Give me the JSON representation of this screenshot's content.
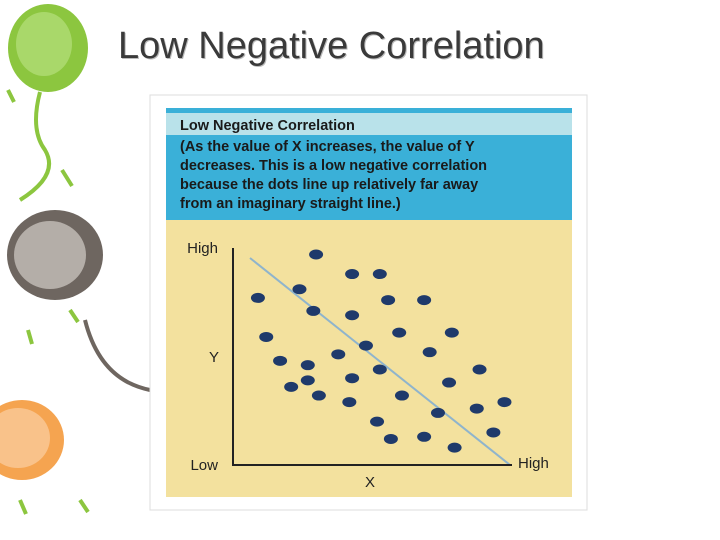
{
  "slide_title": "Low Negative Correlation",
  "chart_data": {
    "type": "scatter",
    "title": "Low Negative Correlation",
    "description": [
      "(As the value of X increases, the value of Y",
      "decreases. This is a low negative correlation",
      "because the dots line up relatively far away",
      "from an imaginary straight line.)"
    ],
    "x_label": "X",
    "y_label": "Y",
    "xlim": [
      0,
      10
    ],
    "ylim": [
      0,
      10
    ],
    "xticks": [
      {
        "value": 10,
        "label": "High"
      }
    ],
    "yticks": [
      {
        "value": 0,
        "label": "Low"
      },
      {
        "value": 10,
        "label": "High"
      }
    ],
    "color": "#1f3a6b",
    "x": [
      3.0,
      4.3,
      5.3,
      2.4,
      0.9,
      5.6,
      6.9,
      2.9,
      4.3,
      1.2,
      6.0,
      7.9,
      4.8,
      1.7,
      2.7,
      3.8,
      7.1,
      5.3,
      8.9,
      2.7,
      4.3,
      2.1,
      3.1,
      4.2,
      6.1,
      7.8,
      9.8,
      7.4,
      8.8,
      5.2,
      9.4,
      5.7,
      6.9,
      8.0
    ],
    "values": [
      9.7,
      8.8,
      8.8,
      8.1,
      7.7,
      7.6,
      7.6,
      7.1,
      6.9,
      5.9,
      6.1,
      6.1,
      5.5,
      4.8,
      4.6,
      5.1,
      5.2,
      4.4,
      4.4,
      3.9,
      4.0,
      3.6,
      3.2,
      2.9,
      3.2,
      3.8,
      2.9,
      2.4,
      2.6,
      2.0,
      1.5,
      1.2,
      1.3,
      0.8
    ]
  }
}
